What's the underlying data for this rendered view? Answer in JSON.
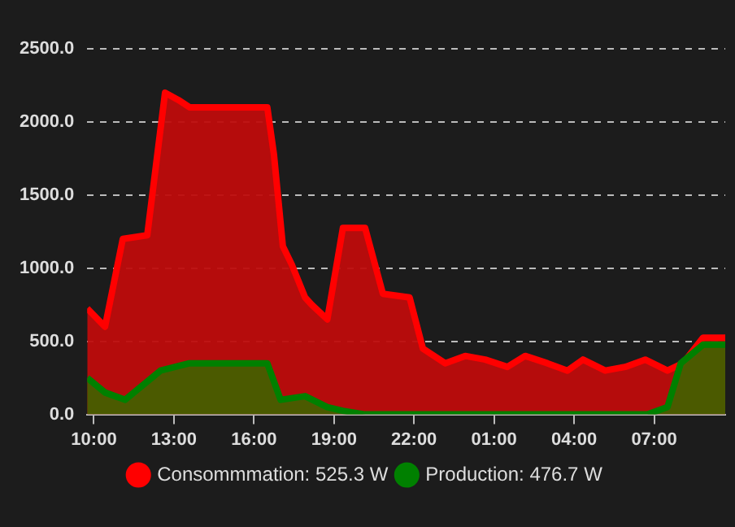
{
  "chart_data": {
    "type": "area",
    "legend": "bottom",
    "grid": "y",
    "marker": "none",
    "line_style": "solid",
    "xlim": [
      "--01-01T09:45",
      "--01-02T09:40"
    ],
    "xticks": [
      {
        "value": "--01-01T10:00",
        "label": "10:00"
      },
      {
        "value": "--01-01T13:00",
        "label": "13:00"
      },
      {
        "value": "--01-01T16:00",
        "label": "16:00"
      },
      {
        "value": "--01-01T19:00",
        "label": "19:00"
      },
      {
        "value": "--01-01T22:00",
        "label": "22:00"
      },
      {
        "value": "--01-02T01:00",
        "label": "01:00"
      },
      {
        "value": "--01-02T04:00",
        "label": "04:00"
      },
      {
        "value": "--01-02T07:00",
        "label": "07:00"
      }
    ],
    "ylim": [
      0,
      2500
    ],
    "yticks": [
      {
        "value": 0,
        "label": "0.0"
      },
      {
        "value": 500,
        "label": "500.0"
      },
      {
        "value": 1000,
        "label": "1000.0"
      },
      {
        "value": 1500,
        "label": "1500.0"
      },
      {
        "value": 2000,
        "label": "2000.0"
      },
      {
        "value": 2500,
        "label": "2500.0"
      }
    ],
    "series": [
      {
        "name": "Consommmation: 525.3 W",
        "color": "#ff0000",
        "x": [
          "--01-01T09:45",
          "--01-01T10:25",
          "--01-01T11:05",
          "--01-01T12:00",
          "--01-01T12:40",
          "--01-01T13:10",
          "--01-01T13:35",
          "--01-01T16:30",
          "--01-01T16:45",
          "--01-01T17:05",
          "--01-01T17:25",
          "--01-01T17:55",
          "--01-01T18:10",
          "--01-01T18:45",
          "--01-01T19:20",
          "--01-01T20:10",
          "--01-01T20:50",
          "--01-01T21:50",
          "--01-01T22:20",
          "--01-01T23:10",
          "--01-01T23:55",
          "--01-02T00:40",
          "--01-02T01:30",
          "--01-02T02:10",
          "--01-02T03:00",
          "--01-02T03:45",
          "--01-02T04:20",
          "--01-02T05:10",
          "--01-02T05:55",
          "--01-02T06:40",
          "--01-02T07:30",
          "--01-02T08:05",
          "--01-02T08:50",
          "--01-02T09:40"
        ],
        "values": [
          725,
          600,
          1200,
          1225,
          2200,
          2150,
          2100,
          2100,
          1775,
          1150,
          1025,
          800,
          750,
          650,
          1275,
          1275,
          825,
          800,
          450,
          350,
          400,
          375,
          325,
          400,
          350,
          300,
          375,
          300,
          325,
          375,
          300,
          350,
          525.3,
          525.3
        ]
      },
      {
        "name": "Production: 476.7 W",
        "color": "#008000",
        "x": [
          "--01-01T09:45",
          "--01-01T10:25",
          "--01-01T11:10",
          "--01-01T11:50",
          "--01-01T12:30",
          "--01-01T13:35",
          "--01-01T16:30",
          "--01-01T17:00",
          "--01-01T17:55",
          "--01-01T18:45",
          "--01-01T19:20",
          "--01-01T20:10",
          "--01-02T06:45",
          "--01-02T07:30",
          "--01-02T08:00",
          "--01-02T08:50",
          "--01-02T09:40"
        ],
        "values": [
          250,
          150,
          100,
          200,
          300,
          350,
          350,
          100,
          125,
          50,
          25,
          0,
          0,
          50,
          350,
          476.7,
          476.7
        ]
      }
    ]
  }
}
